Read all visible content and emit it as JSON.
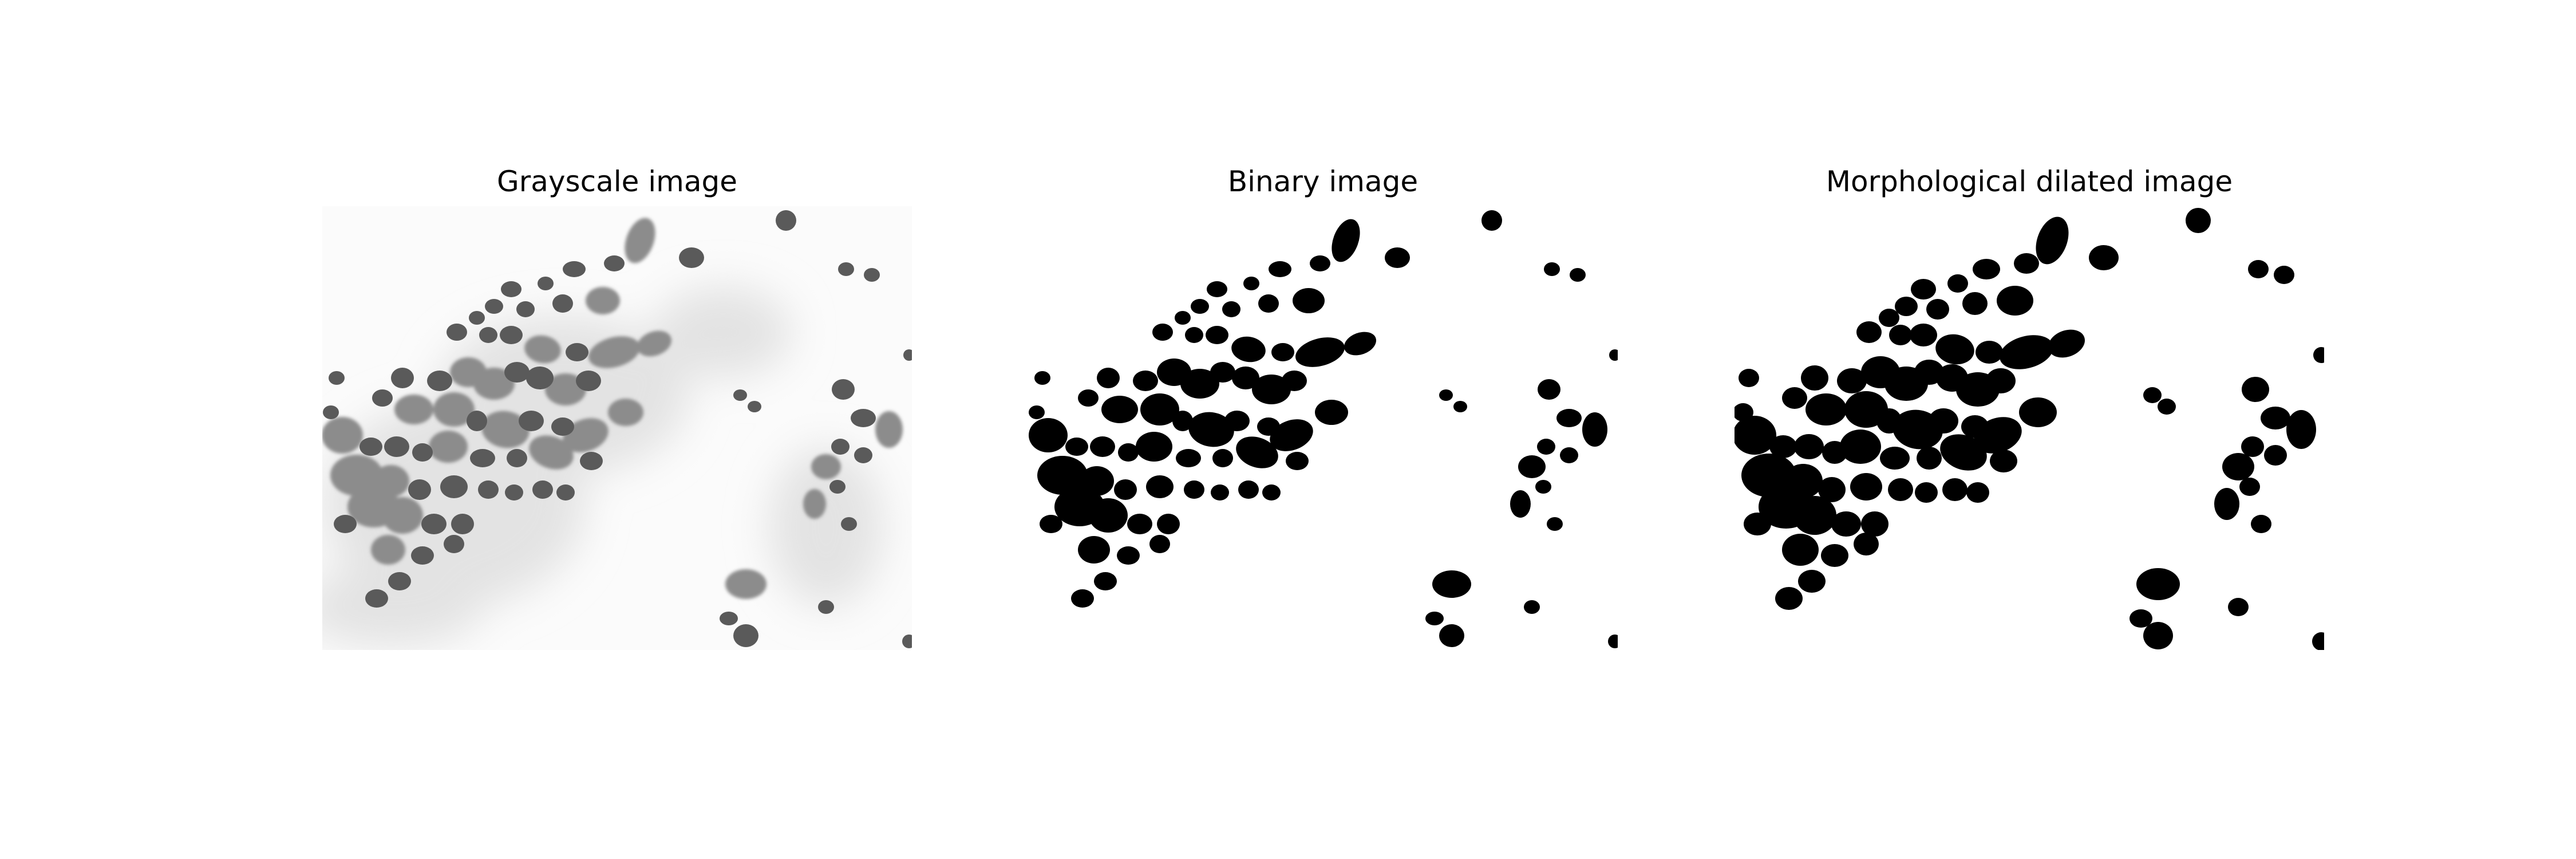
{
  "figure": {
    "panels": [
      {
        "title": "Grayscale image"
      },
      {
        "title": "Binary image"
      },
      {
        "title": "Morphological dilated image"
      }
    ],
    "colors": {
      "background": "#ffffff",
      "nucleus_dark": "#555555",
      "cell_mid": "#8a8a8a",
      "haze": "#e6e6e6",
      "binary_fg": "#000000"
    }
  }
}
